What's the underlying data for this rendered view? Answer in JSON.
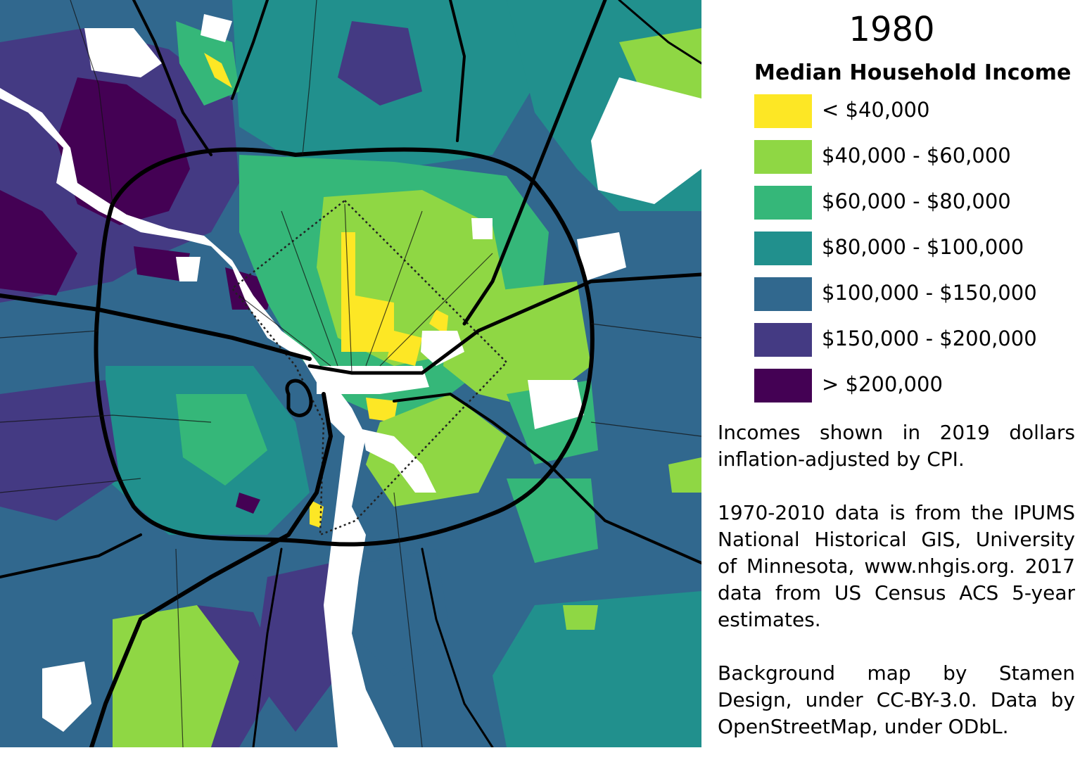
{
  "year": "1980",
  "legend": {
    "title": "Median Household Income",
    "items": [
      {
        "label": "< $40,000",
        "color": "#fde725"
      },
      {
        "label": "$40,000 - $60,000",
        "color": "#8fd744"
      },
      {
        "label": "$60,000 - $80,000",
        "color": "#35b779"
      },
      {
        "label": "$80,000 - $100,000",
        "color": "#21908d"
      },
      {
        "label": "$100,000 - $150,000",
        "color": "#31688e"
      },
      {
        "label": "$150,000 - $200,000",
        "color": "#443a83"
      },
      {
        "label": "> $200,000",
        "color": "#440154"
      }
    ]
  },
  "notes": [
    "Incomes shown in 2019 dollars inflation-adjusted by CPI.",
    "1970-2010 data is from the IPUMS National Historical GIS, University of Minnesota, www.nhgis.org. 2017 data from US Census ACS 5-year estimates.",
    "Background map by Stamen Design, under CC-BY-3.0. Data by OpenStreetMap, under ODbL."
  ],
  "colors": {
    "road": "#000000",
    "water": "#ffffff",
    "no_data": "#ffffff"
  }
}
